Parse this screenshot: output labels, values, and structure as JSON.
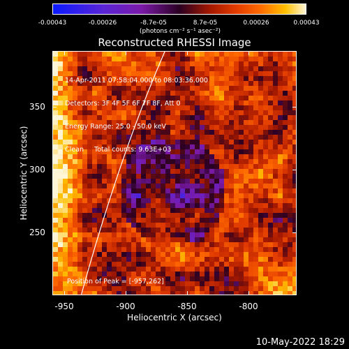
{
  "colorbar": {
    "ticks": [
      "-0.00043",
      "-0.00026",
      "-8.7e-05",
      "8.7e-05",
      "0.00026",
      "0.00043"
    ],
    "units": "(photons cm⁻² s⁻¹ asec⁻²)",
    "colors": [
      "#0b1aff",
      "#5a25d6",
      "#7b1aa8",
      "#2a0022",
      "#a31800",
      "#e03a00",
      "#ff6a00",
      "#ffc000",
      "#fff6d8"
    ]
  },
  "plot": {
    "title": "Reconstructed RHESSI Image",
    "annotation_lines": [
      "14-Apr-2011 07:58:04.000 to 08:03:36.000",
      "Detectors: 3F 4F 5F 6F 7F 8F, Att 0",
      "Energy Range: 25.0 - 50.0 keV",
      "Clean     Total counts: 9.63E+03"
    ],
    "peak_label": "Position of Peak = [-957,262]",
    "xlabel": "Heliocentric X (arcsec)",
    "ylabel": "Heliocentric Y (arcsec)",
    "xticks": [
      "-950",
      "-900",
      "-850",
      "-800"
    ],
    "yticks": [
      "350",
      "300",
      "250"
    ],
    "xlim": [
      -960,
      -760
    ],
    "ylim": [
      200,
      400
    ]
  },
  "footer": {
    "date": "10-May-2022 18:29"
  }
}
